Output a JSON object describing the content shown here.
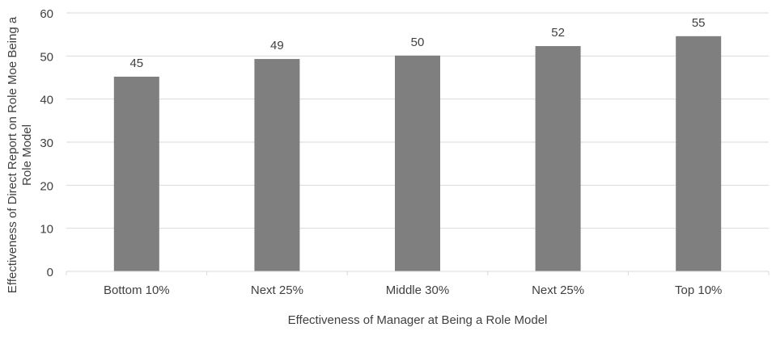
{
  "chart_data": {
    "type": "bar",
    "title": "",
    "xlabel": "Effectiveness of Manager at Being a Role Model",
    "ylabel": "Effectiveness of Direct Report on Role Moe Being a Role Model",
    "ylabel_lines": [
      "Effectiveness of Direct Report on Role Moe Being a",
      "Role Model"
    ],
    "categories": [
      "Bottom 10%",
      "Next 25%",
      "Middle 30%",
      "Next 25%",
      "Top 10%"
    ],
    "values": [
      45.2,
      49.3,
      50.1,
      52.3,
      54.6
    ],
    "data_labels": [
      "45",
      "49",
      "50",
      "52",
      "55"
    ],
    "ylim": [
      0,
      60
    ],
    "yticks": [
      "0",
      "10",
      "20",
      "30",
      "40",
      "50",
      "60"
    ],
    "grid": true,
    "legend": "none",
    "bar_color": "#7f7f7f",
    "grid_color": "#d9d9d9"
  }
}
